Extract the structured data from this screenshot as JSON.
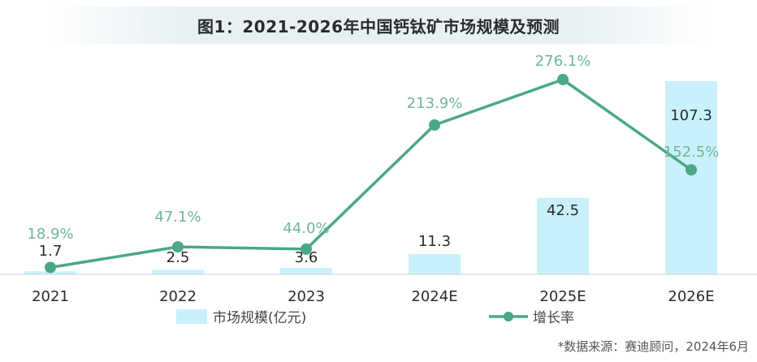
{
  "title": "图1：2021-2026年中国钙钛矿市场规模及预测",
  "source": "*数据来源：赛迪顾问，2024年6月",
  "chart_data": {
    "type": "bar",
    "categories": [
      "2021",
      "2022",
      "2023",
      "2024E",
      "2025E",
      "2026E"
    ],
    "series": [
      {
        "name": "市场规模(亿元)",
        "type": "bar",
        "axis": "left",
        "values": [
          1.7,
          2.5,
          3.6,
          11.3,
          42.5,
          107.3
        ],
        "color": "#c9f1fb"
      },
      {
        "name": "增长率",
        "type": "line",
        "axis": "right",
        "values": [
          18.9,
          47.1,
          44.0,
          213.9,
          276.1,
          152.5
        ],
        "color": "#4aa883"
      }
    ],
    "bar_labels": [
      "1.7",
      "2.5",
      "3.6",
      "11.3",
      "42.5",
      "107.3"
    ],
    "line_labels": [
      "18.9%",
      "47.1%",
      "44.0%",
      "213.9%",
      "276.1%",
      "152.5%"
    ],
    "legend_position": "bottom",
    "grid": false
  },
  "colors": {
    "bar": "#c9f1fb",
    "line": "#4aa883",
    "line_label": "#6fb795",
    "axis": "#444444"
  }
}
